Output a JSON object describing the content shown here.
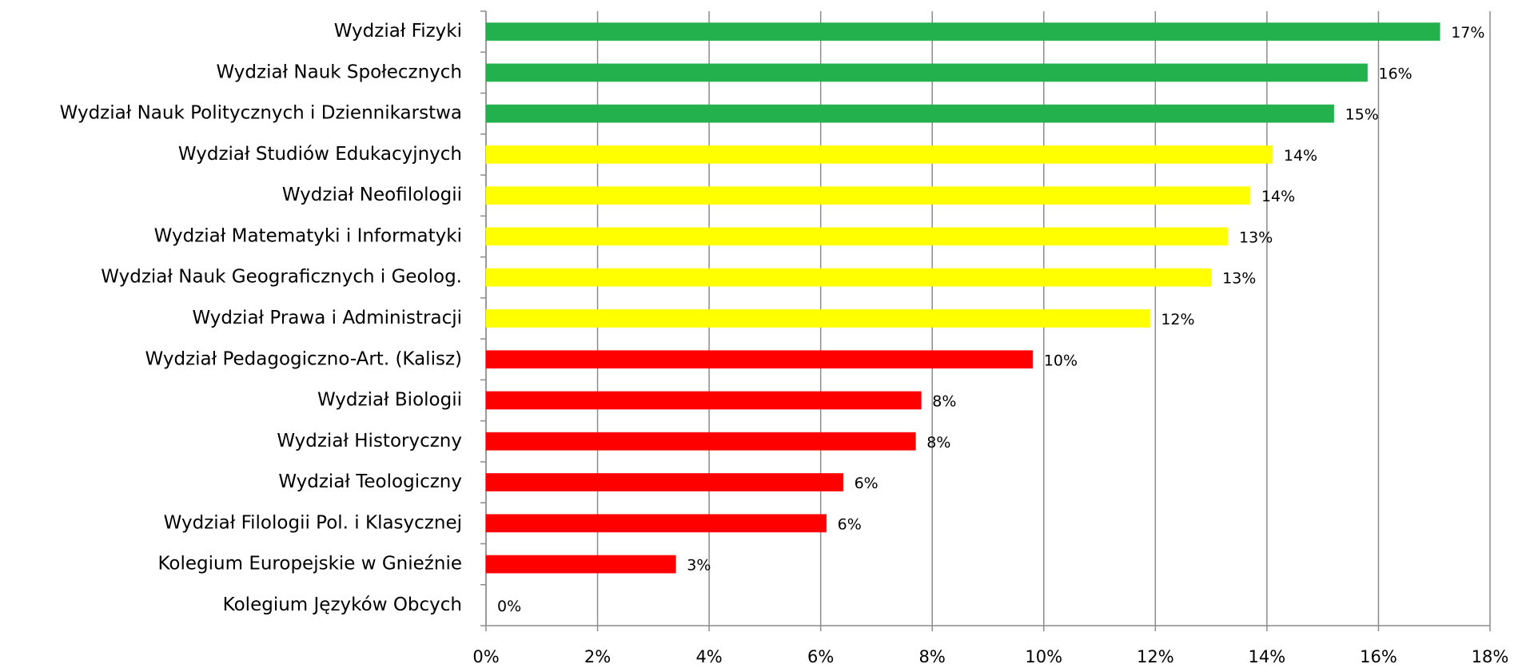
{
  "chart_data": {
    "type": "barh",
    "categories": [
      "Wydział Fizyki",
      "Wydział Nauk Społecznych",
      "Wydział Nauk Politycznych i Dziennikarstwa",
      "Wydział Studiów Edukacyjnych",
      "Wydział Neofilologii",
      "Wydział Matematyki i Informatyki",
      "Wydział Nauk Geograficznych i Geolog.",
      "Wydział Prawa i Administracji",
      "Wydział Pedagogiczno-Art. (Kalisz)",
      "Wydział Biologii",
      "Wydział Historyczny",
      "Wydział Teologiczny",
      "Wydział Filologii Pol. i Klasycznej",
      "Kolegium Europejskie w Gnieźnie",
      "Kolegium Języków Obcych"
    ],
    "values": [
      17.1,
      15.8,
      15.2,
      14.1,
      13.7,
      13.3,
      13.0,
      11.9,
      9.8,
      7.8,
      7.7,
      6.4,
      6.1,
      3.4,
      0
    ],
    "value_labels": [
      "17%",
      "16%",
      "15%",
      "14%",
      "14%",
      "13%",
      "13%",
      "12%",
      "10%",
      "8%",
      "8%",
      "6%",
      "6%",
      "3%",
      "0%"
    ],
    "colors": [
      "#22b14c",
      "#22b14c",
      "#22b14c",
      "#ffff00",
      "#ffff00",
      "#ffff00",
      "#ffff00",
      "#ffff00",
      "#ff0000",
      "#ff0000",
      "#ff0000",
      "#ff0000",
      "#ff0000",
      "#ff0000",
      "#ff0000"
    ],
    "xlim": [
      0,
      18
    ],
    "xticks": [
      {
        "value": 0,
        "label": "0%"
      },
      {
        "value": 2,
        "label": "2%"
      },
      {
        "value": 4,
        "label": "4%"
      },
      {
        "value": 6,
        "label": "6%"
      },
      {
        "value": 8,
        "label": "8%"
      },
      {
        "value": 10,
        "label": "10%"
      },
      {
        "value": 12,
        "label": "12%"
      },
      {
        "value": 14,
        "label": "14%"
      },
      {
        "value": 16,
        "label": "16%"
      },
      {
        "value": 18,
        "label": "18%"
      }
    ],
    "grid": true
  }
}
